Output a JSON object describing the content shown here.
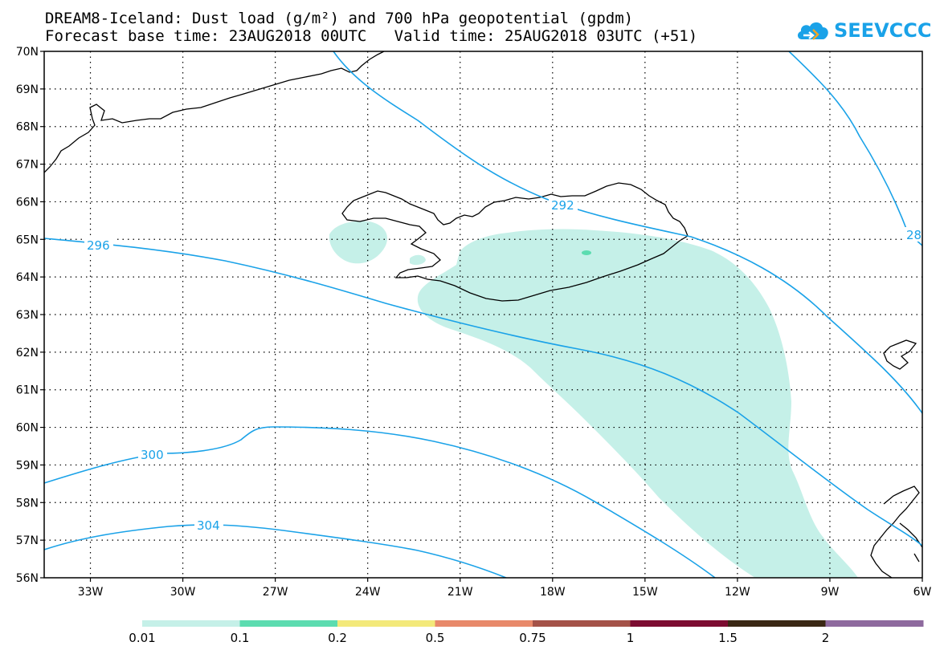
{
  "header": {
    "title_line1": "DREAM8-Iceland: Dust load (g/m²) and 700 hPa geopotential (gpdm)",
    "title_line2": "Forecast base time: 23AUG2018 00UTC   Valid time: 25AUG2018 03UTC (+51)",
    "logo_text": "SEEVCCC"
  },
  "map": {
    "lon_range": [
      -34.5,
      -6
    ],
    "lat_range": [
      56,
      70
    ],
    "lon_ticks": [
      {
        "value": -33,
        "label": "33W"
      },
      {
        "value": -30,
        "label": "30W"
      },
      {
        "value": -27,
        "label": "27W"
      },
      {
        "value": -24,
        "label": "24W"
      },
      {
        "value": -21,
        "label": "21W"
      },
      {
        "value": -18,
        "label": "18W"
      },
      {
        "value": -15,
        "label": "15W"
      },
      {
        "value": -12,
        "label": "12W"
      },
      {
        "value": -9,
        "label": "9W"
      },
      {
        "value": -6,
        "label": "6W"
      }
    ],
    "lat_ticks": [
      {
        "value": 70,
        "label": "70N"
      },
      {
        "value": 69,
        "label": "69N"
      },
      {
        "value": 68,
        "label": "68N"
      },
      {
        "value": 67,
        "label": "67N"
      },
      {
        "value": 66,
        "label": "66N"
      },
      {
        "value": 65,
        "label": "65N"
      },
      {
        "value": 64,
        "label": "64N"
      },
      {
        "value": 63,
        "label": "63N"
      },
      {
        "value": 62,
        "label": "62N"
      },
      {
        "value": 61,
        "label": "61N"
      },
      {
        "value": 60,
        "label": "60N"
      },
      {
        "value": 59,
        "label": "59N"
      },
      {
        "value": 58,
        "label": "58N"
      },
      {
        "value": 57,
        "label": "57N"
      },
      {
        "value": 56,
        "label": "56N"
      }
    ],
    "contour_color": "#1aa2e8",
    "contour_labels": [
      "292",
      "296",
      "300",
      "304",
      "28"
    ],
    "dust_colors": {
      "low": "#c5f0e8",
      "mid": "#5cdcb0"
    }
  },
  "colorbar": {
    "segments": [
      {
        "color": "#c5f0e8"
      },
      {
        "color": "#5cdcb0"
      },
      {
        "color": "#f3e97a"
      },
      {
        "color": "#e8896a"
      },
      {
        "color": "#a45248"
      },
      {
        "color": "#7c0c31"
      },
      {
        "color": "#3a2814"
      },
      {
        "color": "#8e6a9e"
      }
    ],
    "labels": [
      "0.01",
      "0.1",
      "0.2",
      "0.5",
      "0.75",
      "1",
      "1.5",
      "2"
    ]
  }
}
